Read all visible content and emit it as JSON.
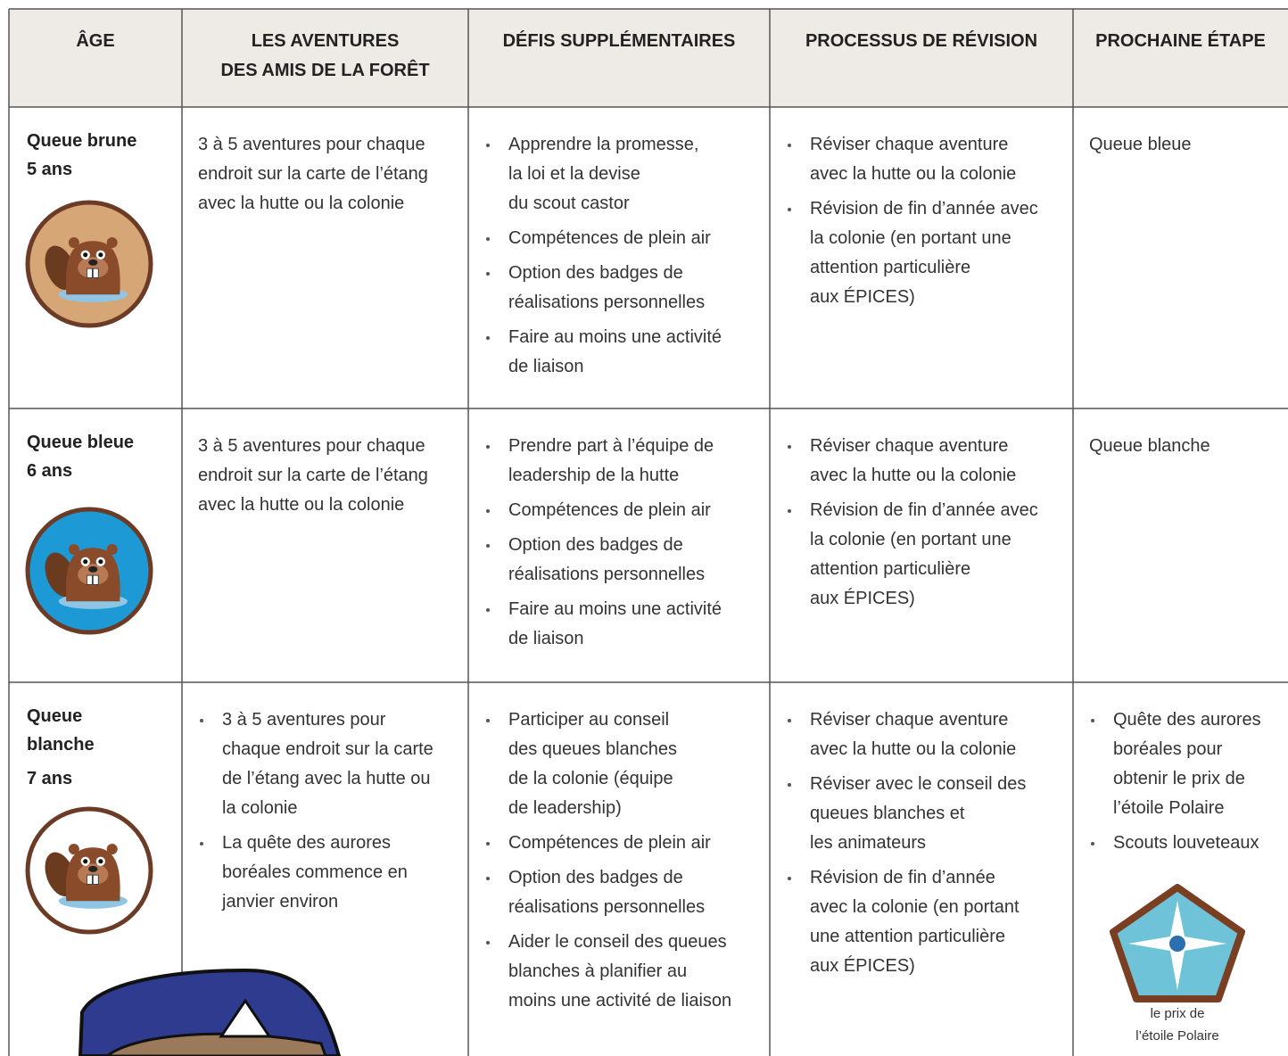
{
  "table": {
    "header": [
      [
        "ÂGE"
      ],
      [
        "LES AVENTURES",
        "DES AMIS DE LA FORÊT"
      ],
      [
        "DÉFIS SUPPLÉMENTAIRES"
      ],
      [
        "PROCESSUS DE RÉVISION"
      ],
      [
        "PROCHAINE ÉTAPE"
      ]
    ],
    "rows": [
      {
        "age": [
          "Queue brune",
          "5 ans"
        ],
        "cells": [
          {
            "bullets": false,
            "items": [
              [
                "3 à 5 aventures pour chaque",
                "endroit sur la carte de l’étang",
                "avec la hutte ou la colonie"
              ]
            ]
          },
          {
            "bullets": true,
            "items": [
              [
                "Apprendre la promesse,",
                "la loi et la devise",
                "du scout castor"
              ],
              [
                "Compétences de plein air"
              ],
              [
                "Option des badges de",
                "réalisations personnelles"
              ],
              [
                "Faire au moins une activité",
                "de liaison"
              ]
            ]
          },
          {
            "bullets": true,
            "items": [
              [
                "Réviser chaque aventure",
                "avec la hutte ou la colonie"
              ],
              [
                "Révision de fin d’année avec",
                "la colonie (en portant une",
                "attention particulière",
                "aux ÉPICES)"
              ]
            ]
          },
          {
            "bullets": false,
            "items": [
              [
                "Queue bleue"
              ]
            ]
          }
        ]
      },
      {
        "age": [
          "Queue bleue",
          "6 ans"
        ],
        "cells": [
          {
            "bullets": false,
            "items": [
              [
                "3 à 5 aventures pour chaque",
                "endroit sur la carte de l’étang",
                "avec la hutte ou la colonie"
              ]
            ]
          },
          {
            "bullets": true,
            "items": [
              [
                "Prendre part à l’équipe de",
                "leadership de la hutte"
              ],
              [
                "Compétences de plein air"
              ],
              [
                "Option des badges de",
                "réalisations personnelles"
              ],
              [
                "Faire au moins une activité",
                "de liaison"
              ]
            ]
          },
          {
            "bullets": true,
            "items": [
              [
                "Réviser chaque aventure",
                "avec la hutte ou la colonie"
              ],
              [
                "Révision de fin d’année avec",
                "la colonie (en portant une",
                "attention particulière",
                "aux ÉPICES)"
              ]
            ]
          },
          {
            "bullets": false,
            "items": [
              [
                "Queue blanche"
              ]
            ]
          }
        ]
      },
      {
        "age": [
          "Queue",
          "blanche",
          "7 ans"
        ],
        "cells": [
          {
            "bullets": true,
            "items": [
              [
                "3 à 5 aventures pour",
                "chaque endroit sur la carte",
                "de l’étang avec la hutte ou",
                "la colonie"
              ],
              [
                "La quête des aurores",
                "boréales commence en",
                "janvier environ"
              ]
            ]
          },
          {
            "bullets": true,
            "items": [
              [
                "Participer au conseil",
                "des queues blanches",
                "de la colonie (équipe",
                "de leadership)"
              ],
              [
                "Compétences de plein air"
              ],
              [
                "Option des badges de",
                "réalisations personnelles"
              ],
              [
                "Aider le conseil des queues",
                "blanches à planifier au",
                "moins une activité de liaison"
              ]
            ]
          },
          {
            "bullets": true,
            "items": [
              [
                "Réviser chaque aventure",
                "avec la hutte ou la colonie"
              ],
              [
                "Réviser avec le conseil des",
                "queues blanches et",
                "les animateurs"
              ],
              [
                "Révision de fin d’année",
                "avec la colonie (en portant",
                "une attention particulière",
                "aux ÉPICES)"
              ]
            ]
          },
          {
            "bullets": true,
            "items": [
              [
                "Quête des aurores",
                "boréales pour",
                "obtenir le prix de",
                "l’étoile Polaire"
              ],
              [
                "Scouts louveteaux"
              ]
            ]
          }
        ],
        "badge_caption": [
          "le prix de",
          "l’étoile Polaire"
        ]
      }
    ]
  }
}
